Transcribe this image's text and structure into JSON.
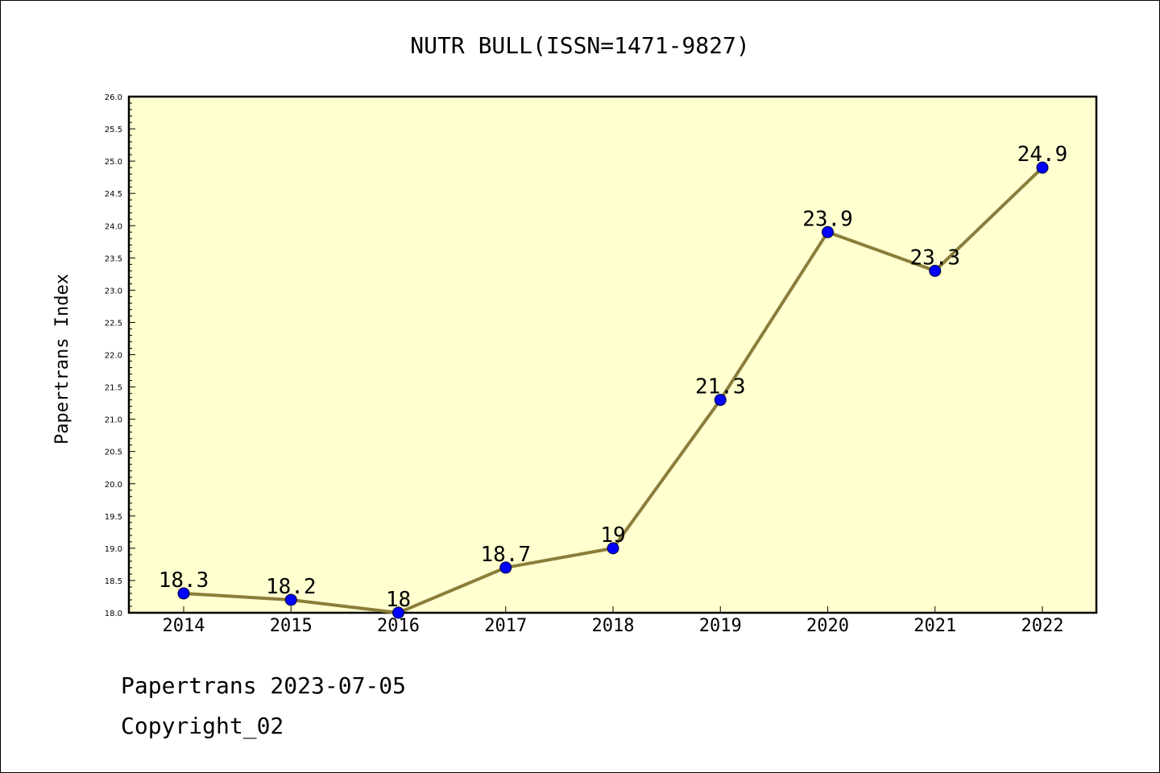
{
  "chart_data": {
    "type": "line",
    "title": "NUTR BULL(ISSN=1471-9827)",
    "ylabel": "Papertrans Index",
    "xlabel": "",
    "categories": [
      "2014",
      "2015",
      "2016",
      "2017",
      "2018",
      "2019",
      "2020",
      "2021",
      "2022"
    ],
    "series": [
      {
        "values": [
          18.3,
          18.2,
          18.0,
          18.7,
          19.0,
          21.3,
          23.9,
          23.3,
          24.9
        ],
        "data_labels": [
          "18.3",
          "18.2",
          "18",
          "18.7",
          "19",
          "21.3",
          "23.9",
          "23.3",
          "24.9"
        ]
      }
    ],
    "ylim": [
      18.0,
      26.0
    ],
    "y_ticks": [
      "18.0",
      "18.5",
      "19.0",
      "19.5",
      "20.0",
      "20.5",
      "21.0",
      "21.5",
      "22.0",
      "22.5",
      "23.0",
      "23.5",
      "24.0",
      "24.5",
      "25.0",
      "25.5",
      "26.0"
    ],
    "grid": false,
    "colors": {
      "plot_background": "#ffffd0",
      "line": "#8b7d3a",
      "marker": "#0000ff"
    }
  },
  "footer": {
    "line1": "Papertrans 2023-07-05",
    "line2": "Copyright_02"
  }
}
